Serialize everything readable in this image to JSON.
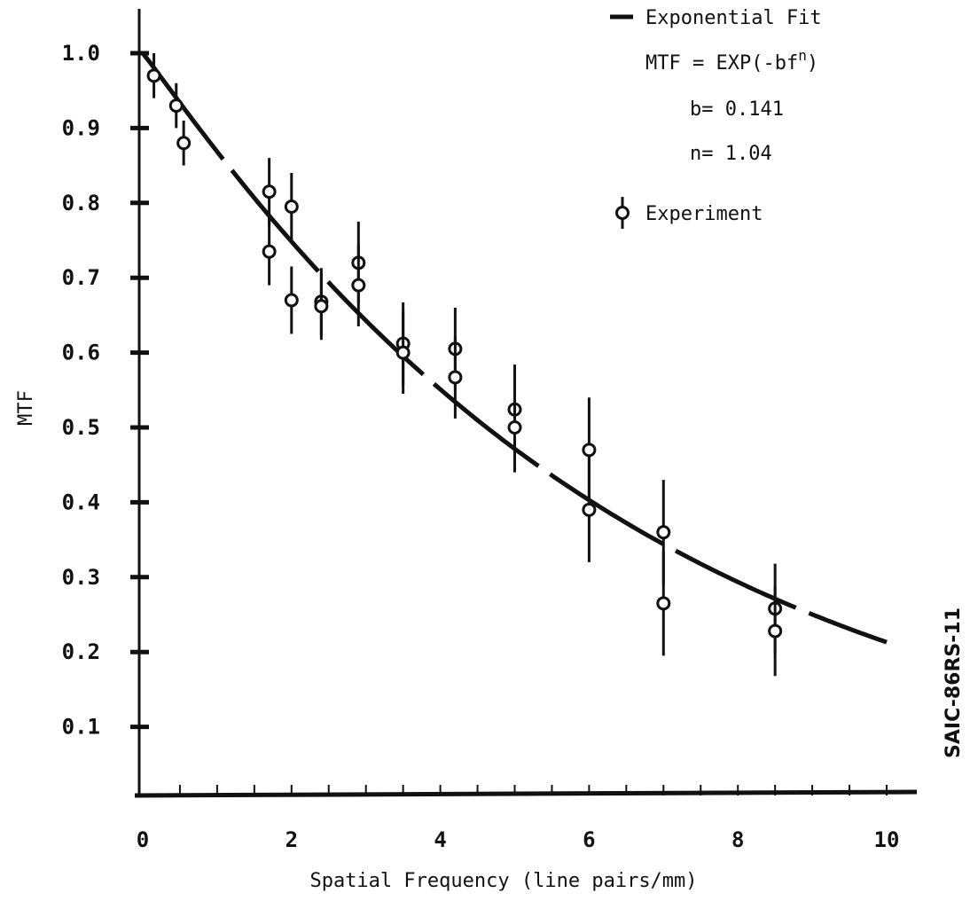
{
  "chart_data": {
    "type": "scatter",
    "xlabel": "Spatial Frequency (line pairs/mm)",
    "ylabel": "MTF",
    "xlim": [
      0,
      10.5
    ],
    "ylim": [
      0,
      1.0
    ],
    "x_ticks": [
      0,
      2,
      4,
      6,
      8,
      10
    ],
    "x_tick_labels": [
      "0",
      "2",
      "4",
      "6",
      "8",
      "10"
    ],
    "y_ticks": [
      0.1,
      0.2,
      0.3,
      0.4,
      0.5,
      0.6,
      0.7,
      0.8,
      0.9,
      1.0
    ],
    "y_tick_labels": [
      "0.1",
      "0.2",
      "0.3",
      "0.4",
      "0.5",
      "0.6",
      "0.7",
      "0.8",
      "0.9",
      "1.0"
    ],
    "grid": false,
    "legend_position": "top-right",
    "legend": {
      "fit_label": "Exponential Fit",
      "equation": "MTF = EXP(-bf",
      "equation_exponent": "n",
      "equation_close": ")",
      "b_label": "b= 0.141",
      "n_label": "n= 1.04",
      "experiment_label": "Experiment"
    },
    "fit": {
      "b": 0.141,
      "n": 1.04,
      "x_range": [
        0,
        10
      ]
    },
    "series": [
      {
        "name": "Experiment",
        "points": [
          {
            "x": 0.15,
            "y": 0.97,
            "err": 0.03
          },
          {
            "x": 0.45,
            "y": 0.93,
            "err": 0.03
          },
          {
            "x": 0.55,
            "y": 0.88,
            "err": 0.03
          },
          {
            "x": 1.7,
            "y": 0.815,
            "err": 0.045
          },
          {
            "x": 1.7,
            "y": 0.735,
            "err": 0.045
          },
          {
            "x": 2.0,
            "y": 0.795,
            "err": 0.045
          },
          {
            "x": 2.0,
            "y": 0.67,
            "err": 0.045
          },
          {
            "x": 2.4,
            "y": 0.668,
            "err": 0.045
          },
          {
            "x": 2.4,
            "y": 0.662,
            "err": 0.045
          },
          {
            "x": 2.9,
            "y": 0.72,
            "err": 0.055
          },
          {
            "x": 2.9,
            "y": 0.69,
            "err": 0.055
          },
          {
            "x": 3.5,
            "y": 0.612,
            "err": 0.055
          },
          {
            "x": 3.5,
            "y": 0.6,
            "err": 0.055
          },
          {
            "x": 4.2,
            "y": 0.605,
            "err": 0.055
          },
          {
            "x": 4.2,
            "y": 0.567,
            "err": 0.055
          },
          {
            "x": 5.0,
            "y": 0.524,
            "err": 0.06
          },
          {
            "x": 5.0,
            "y": 0.5,
            "err": 0.06
          },
          {
            "x": 6.0,
            "y": 0.47,
            "err": 0.07
          },
          {
            "x": 6.0,
            "y": 0.39,
            "err": 0.07
          },
          {
            "x": 7.0,
            "y": 0.36,
            "err": 0.07
          },
          {
            "x": 7.0,
            "y": 0.265,
            "err": 0.07
          },
          {
            "x": 8.5,
            "y": 0.258,
            "err": 0.06
          },
          {
            "x": 8.5,
            "y": 0.228,
            "err": 0.06
          }
        ]
      }
    ],
    "side_label": "SAIC-86RS-11"
  }
}
